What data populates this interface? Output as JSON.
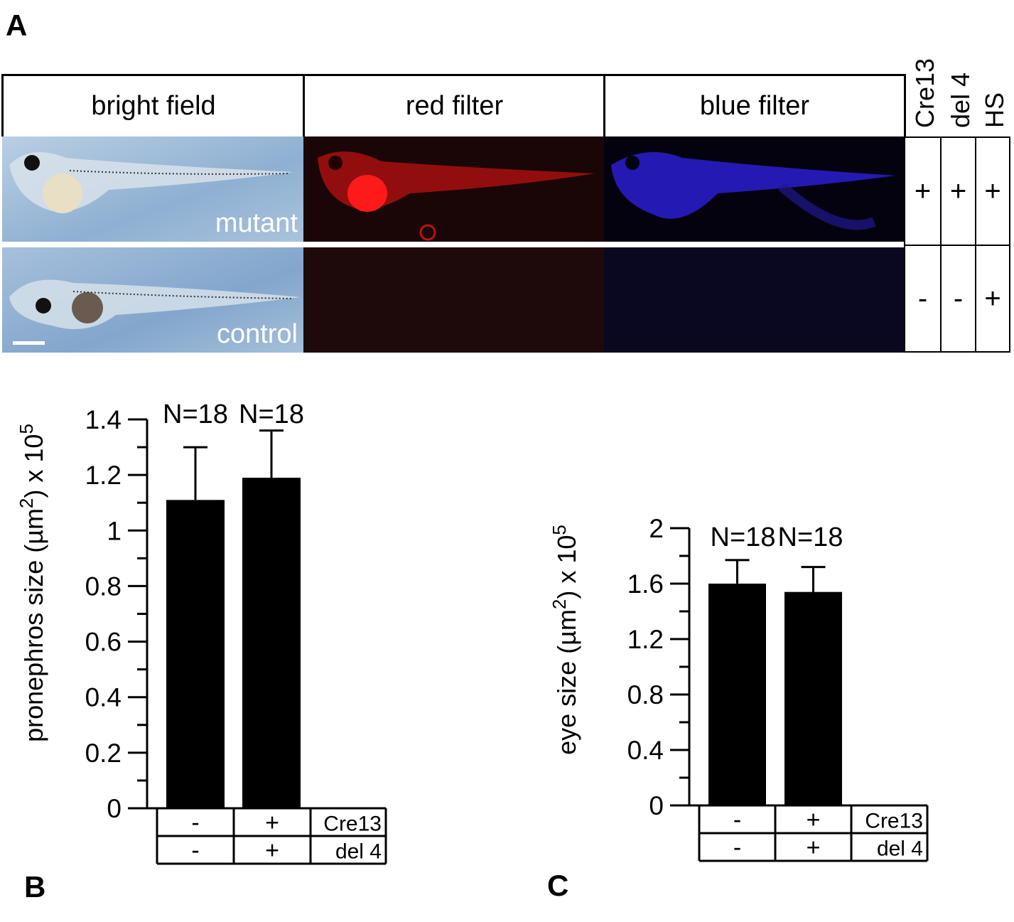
{
  "panels": {
    "a": "A",
    "b": "B",
    "c": "C"
  },
  "panel_a": {
    "columns": [
      "bright field",
      "red filter",
      "blue filter"
    ],
    "row_labels": [
      "mutant",
      "control"
    ],
    "condition_headers": [
      "Cre13",
      "del 4",
      "HS"
    ],
    "conditions": [
      [
        "+",
        "+",
        "+"
      ],
      [
        "-",
        "-",
        "+"
      ]
    ]
  },
  "chart_data": [
    {
      "type": "bar",
      "panel": "B",
      "ylabel": "pronephros size (µm²) x 10⁵",
      "ylabel_parts": {
        "main": "pronephros size (µm",
        "sup": "2",
        "tail": ") x 10",
        "exp": "5"
      },
      "ylim": [
        0,
        1.4
      ],
      "yticks": [
        0,
        0.2,
        0.4,
        0.6,
        0.8,
        1,
        1.2,
        1.4
      ],
      "ytick_labels": [
        "0",
        "0.2",
        "0.4",
        "0.6",
        "0.8",
        "1",
        "1.2",
        "1.4"
      ],
      "values": [
        1.11,
        1.19
      ],
      "errors": [
        0.19,
        0.17
      ],
      "n_labels": [
        "N=18",
        "N=18"
      ],
      "table": {
        "rows": [
          {
            "label": "Cre13",
            "values": [
              "-",
              "+"
            ]
          },
          {
            "label": "del 4",
            "values": [
              "-",
              "+"
            ]
          }
        ]
      }
    },
    {
      "type": "bar",
      "panel": "C",
      "ylabel": "eye size (µm2) x 10⁵",
      "ylabel_parts": {
        "main": "eye size (µm",
        "sup": "2",
        "tail": ") x 10",
        "exp": "5"
      },
      "ylim": [
        0,
        2
      ],
      "yticks": [
        0,
        0.4,
        0.8,
        1.2,
        1.6,
        2
      ],
      "ytick_labels": [
        "0",
        "0.4",
        "0.8",
        "1.2",
        "1.6",
        "2"
      ],
      "values": [
        1.6,
        1.54
      ],
      "errors": [
        0.17,
        0.18
      ],
      "n_labels": [
        "N=18",
        "N=18"
      ],
      "table": {
        "rows": [
          {
            "label": "Cre13",
            "values": [
              "-",
              "+"
            ]
          },
          {
            "label": "del 4",
            "values": [
              "-",
              "+"
            ]
          }
        ]
      }
    }
  ]
}
